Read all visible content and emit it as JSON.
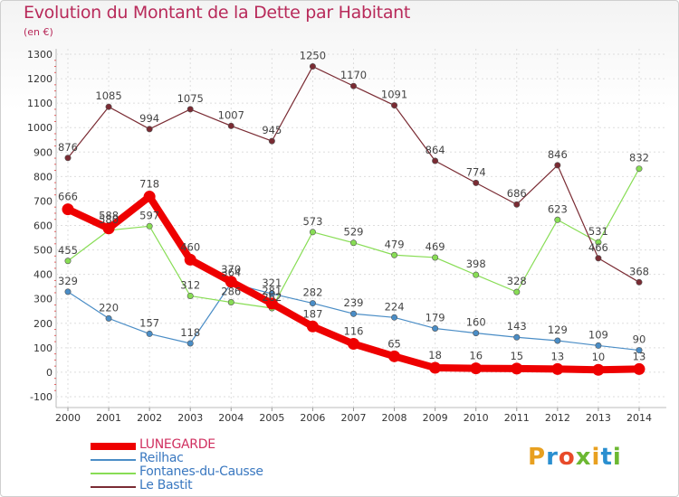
{
  "title": "Evolution du Montant de la Dette par Habitant",
  "unit": "(en €)",
  "logo": {
    "text": "Proxiti",
    "colors": [
      "#e8a020",
      "#2a8fd0",
      "#e84b2a",
      "#6cb832",
      "#e8a020",
      "#2a8fd0",
      "#6cb832"
    ]
  },
  "chart_data": {
    "type": "line",
    "title": "Evolution du Montant de la Dette par Habitant",
    "ylabel": "(en €)",
    "x": [
      "2000",
      "2001",
      "2002",
      "2003",
      "2004",
      "2005",
      "2006",
      "2007",
      "2008",
      "2009",
      "2010",
      "2011",
      "2012",
      "2013",
      "2014"
    ],
    "ylim": [
      -100,
      1300
    ],
    "yticks": [
      -100,
      0,
      100,
      200,
      300,
      400,
      500,
      600,
      700,
      800,
      900,
      1000,
      1100,
      1200,
      1300
    ],
    "grid": true,
    "legend_position": "bottom-left",
    "series": [
      {
        "name": "LUNEGARDE",
        "color": "#ee0000",
        "values": [
          666,
          588,
          718,
          460,
          370,
          281,
          187,
          116,
          65,
          18,
          16,
          15,
          13,
          10,
          13
        ]
      },
      {
        "name": "Reilhac",
        "color": "#4a8dc6",
        "values": [
          329,
          220,
          157,
          118,
          364,
          321,
          282,
          239,
          224,
          179,
          160,
          143,
          129,
          109,
          90
        ]
      },
      {
        "name": "Fontanes-du-Causse",
        "color": "#88dd55",
        "values": [
          455,
          580,
          597,
          312,
          286,
          262,
          573,
          529,
          479,
          469,
          398,
          328,
          623,
          531,
          832
        ]
      },
      {
        "name": "Le Bastit",
        "color": "#7a2b33",
        "values": [
          876,
          1085,
          994,
          1075,
          1007,
          945,
          1250,
          1170,
          1091,
          864,
          774,
          686,
          846,
          466,
          368
        ]
      }
    ],
    "data_labels": {
      "LUNEGARDE": [
        "666",
        "588",
        "718",
        "460",
        "370",
        "281",
        "187",
        "116",
        "65",
        "18",
        "16",
        "15",
        "13",
        "10",
        "13"
      ],
      "Reilhac": [
        "329",
        "220",
        "157",
        "118",
        "364",
        "321",
        "282",
        "239",
        "224",
        "179",
        "160",
        "143",
        "129",
        "109",
        "90"
      ],
      "Fontanes-du-Causse": [
        "455",
        "580",
        "597",
        "312",
        "286",
        "262",
        "573",
        "529",
        "479",
        "469",
        "398",
        "328",
        "623",
        "531",
        "832"
      ],
      "Le Bastit": [
        "876",
        "1085",
        "994",
        "1075",
        "1007",
        "945",
        "1250",
        "1170",
        "1091",
        "864",
        "774",
        "686",
        "846",
        "466",
        "368"
      ]
    }
  }
}
